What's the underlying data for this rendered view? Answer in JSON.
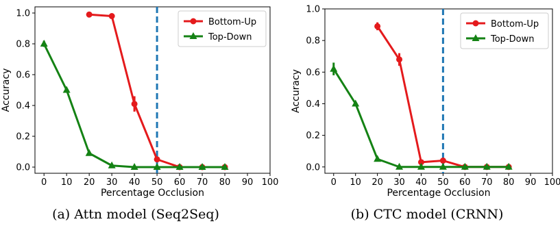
{
  "figure": {
    "caption_a": "(a) Attn model (Seq2Seq)",
    "caption_b": "(b) CTC model (CRNN)"
  },
  "colors": {
    "bottom_up": "#e41a1c",
    "top_down": "#148214",
    "threshold": "#1f77b4"
  },
  "chart_data": [
    {
      "type": "line",
      "xlabel": "Percentage Occlusion",
      "ylabel": "Accuracy",
      "xlim": [
        -4,
        100
      ],
      "ylim": [
        -0.04,
        1.04
      ],
      "x_ticks": [
        0,
        10,
        20,
        30,
        40,
        50,
        60,
        70,
        80,
        90,
        100
      ],
      "y_ticks": [
        0.0,
        0.2,
        0.4,
        0.6,
        0.8,
        1.0
      ],
      "y_tick_labels": [
        "0.0",
        "0.2",
        "0.4",
        "0.6",
        "0.8",
        "1.0"
      ],
      "threshold_x": 50,
      "legend_position": "top-right",
      "series": [
        {
          "name": "Bottom-Up",
          "marker": "circle",
          "color": "#e41a1c",
          "x": [
            20,
            30,
            40,
            50,
            60,
            70,
            80
          ],
          "values": [
            0.99,
            0.98,
            0.41,
            0.05,
            0.0,
            0.0,
            0.0
          ],
          "error": [
            0.0,
            0.01,
            0.05,
            0.0,
            0.0,
            0.0,
            0.0
          ]
        },
        {
          "name": "Top-Down",
          "marker": "triangle",
          "color": "#148214",
          "x": [
            0,
            10,
            20,
            30,
            40,
            50,
            60,
            70,
            80
          ],
          "values": [
            0.8,
            0.5,
            0.09,
            0.01,
            0.0,
            0.0,
            0.0,
            0.0,
            0.0
          ],
          "error": [
            0.02,
            0.0,
            0.0,
            0.0,
            0.0,
            0.0,
            0.0,
            0.0,
            0.0
          ]
        }
      ]
    },
    {
      "type": "line",
      "xlabel": "Percentage Occlusion",
      "ylabel": "Accuracy",
      "xlim": [
        -4,
        100
      ],
      "ylim": [
        -0.04,
        1.0
      ],
      "x_ticks": [
        0,
        10,
        20,
        30,
        40,
        50,
        60,
        70,
        80,
        90,
        100
      ],
      "y_ticks": [
        0.0,
        0.2,
        0.4,
        0.6,
        0.8,
        1.0
      ],
      "y_tick_labels": [
        "0.0",
        "0.2",
        "0.4",
        "0.6",
        "0.8",
        "1.0"
      ],
      "threshold_x": 50,
      "legend_position": "top-right",
      "series": [
        {
          "name": "Bottom-Up",
          "marker": "circle",
          "color": "#e41a1c",
          "x": [
            20,
            30,
            40,
            50,
            60,
            70,
            80
          ],
          "values": [
            0.89,
            0.68,
            0.03,
            0.04,
            0.0,
            0.0,
            0.0
          ],
          "error": [
            0.025,
            0.04,
            0.01,
            0.01,
            0.0,
            0.0,
            0.0
          ]
        },
        {
          "name": "Top-Down",
          "marker": "triangle",
          "color": "#148214",
          "x": [
            0,
            10,
            20,
            30,
            40,
            50,
            60,
            70,
            80
          ],
          "values": [
            0.62,
            0.4,
            0.05,
            0.0,
            0.0,
            0.0,
            0.0,
            0.0,
            0.0
          ],
          "error": [
            0.04,
            0.0,
            0.0,
            0.0,
            0.0,
            0.0,
            0.0,
            0.0,
            0.0
          ]
        }
      ]
    }
  ]
}
